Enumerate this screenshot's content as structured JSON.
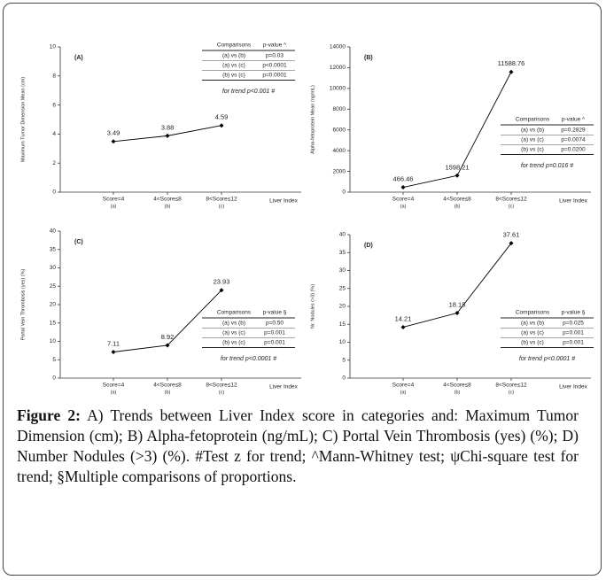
{
  "chart_data": [
    {
      "type": "line",
      "panel": "(A)",
      "y_label": "Maximum Tumor Dimension  Mean (cm)",
      "x_label": "Liver Index",
      "categories": [
        "Score=4",
        "4<Score≤8",
        "8<Score≤12"
      ],
      "category_codes": [
        "(a)",
        "(b)",
        "(c)"
      ],
      "values": [
        3.49,
        3.88,
        4.59
      ],
      "color": "#000000",
      "ylim": [
        0,
        10
      ],
      "yticks": [
        0,
        2,
        4,
        6,
        8,
        10
      ],
      "comparisons": {
        "header": [
          "Comparisons",
          "p-value ^"
        ],
        "rows": [
          [
            "(a) vs (b)",
            "p=0.03"
          ],
          [
            "(a) vs (c)",
            "p<0.0001"
          ],
          [
            "(b) vs (c)",
            "p=0.0001"
          ]
        ],
        "trend": "for trend p<0.001 #"
      }
    },
    {
      "type": "line",
      "panel": "(B)",
      "y_label": "Alpha-fetoprotein  Mean (ng/mL)",
      "x_label": "Liver Index",
      "categories": [
        "Score=4",
        "4<Score≤8",
        "8<Score≤12"
      ],
      "category_codes": [
        "(a)",
        "(b)",
        "(c)"
      ],
      "values": [
        466.46,
        1598.21,
        11588.76
      ],
      "color": "#000000",
      "ylim": [
        0,
        14000
      ],
      "yticks": [
        0,
        2000,
        4000,
        6000,
        8000,
        10000,
        12000,
        14000
      ],
      "comparisons": {
        "header": [
          "Comparisons",
          "p-value ^"
        ],
        "rows": [
          [
            "(a) vs (b)",
            "p=0.2829"
          ],
          [
            "(a) vs (c)",
            "p=0.0074"
          ],
          [
            "(b) vs (c)",
            "p=0.0200"
          ]
        ],
        "trend": "for trend p=0.016 #"
      }
    },
    {
      "type": "line",
      "panel": "(C)",
      "y_label": "Portal Vein Thrombosis (yes) (%)",
      "x_label": "Liver Index",
      "categories": [
        "Score=4",
        "4<Score≤8",
        "8<Score≤12"
      ],
      "category_codes": [
        "(a)",
        "(b)",
        "(c)"
      ],
      "values": [
        7.11,
        8.92,
        23.93
      ],
      "color": "#000000",
      "ylim": [
        0,
        40
      ],
      "yticks": [
        0,
        5,
        10,
        15,
        20,
        25,
        30,
        35,
        40
      ],
      "comparisons": {
        "header": [
          "Comparisons",
          "p-value §"
        ],
        "rows": [
          [
            "(a) vs (b)",
            "p=0.50"
          ],
          [
            "(a) vs (c)",
            "p=0.001"
          ],
          [
            "(b) vs (c)",
            "p=0.001"
          ]
        ],
        "trend": "for trend p<0.0001 #"
      }
    },
    {
      "type": "line",
      "panel": "(D)",
      "y_label": "Nr. Nodules (>3) (%)",
      "x_label": "Liver Index",
      "categories": [
        "Score=4",
        "4<Score≤8",
        "8<Score≤12"
      ],
      "category_codes": [
        "(a)",
        "(b)",
        "(c)"
      ],
      "values": [
        14.21,
        18.15,
        37.61
      ],
      "color": "#000000",
      "ylim": [
        0,
        40
      ],
      "yticks": [
        0,
        5,
        10,
        15,
        20,
        25,
        30,
        35,
        40
      ],
      "comparisons": {
        "header": [
          "Comparisons",
          "p-value §"
        ],
        "rows": [
          [
            "(a) vs (b)",
            "p=0.025"
          ],
          [
            "(a) vs (c)",
            "p=0.001"
          ],
          [
            "(b) vs (c)",
            "p=0.001"
          ]
        ],
        "trend": "for trend p<0.0001 #"
      }
    }
  ],
  "caption": {
    "label": "Figure 2:",
    "text": "A) Trends between Liver Index score in categories and: Maximum Tumor Dimension (cm); B) Alpha-fetoprotein (ng/mL); C) Portal Vein Thrombosis (yes) (%); D) Number Nodules (>3) (%). #Test z for trend; ^Mann-Whitney test; ψChi-square test for trend; §Multiple comparisons of proportions."
  }
}
